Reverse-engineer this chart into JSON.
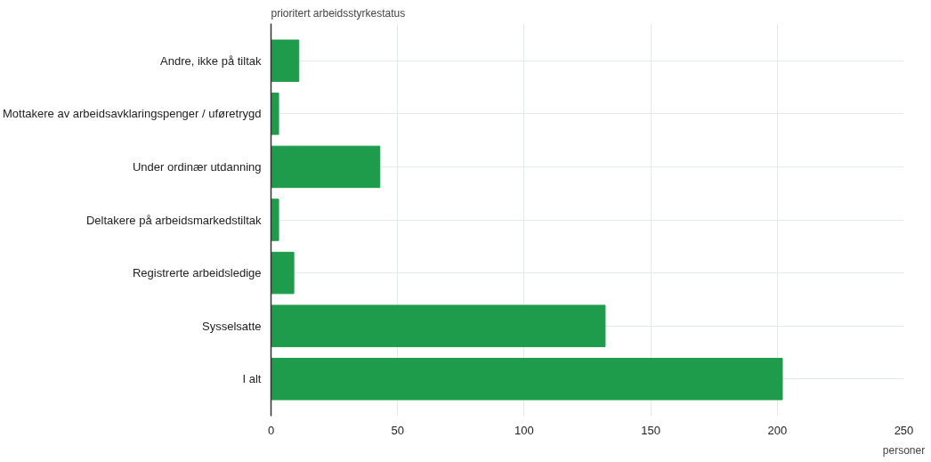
{
  "chart_data": {
    "type": "bar",
    "orientation": "horizontal",
    "ylabel": "prioritert arbeidsstyrkestatus",
    "xlabel": "personer",
    "categories": [
      "Andre, ikke på tiltak",
      "Mottakere av arbeidsavklaringspenger / uføretrygd",
      "Under ordinær utdanning",
      "Deltakere på arbeidsmarkedstiltak",
      "Registrerte arbeidsledige",
      "Sysselsatte",
      "I alt"
    ],
    "values": [
      11,
      3,
      43,
      3,
      9,
      132,
      202
    ],
    "color": "#1e9c4b",
    "xlim": [
      0,
      250
    ],
    "xticks": [
      0,
      50,
      100,
      150,
      200,
      250
    ],
    "grid": true
  }
}
